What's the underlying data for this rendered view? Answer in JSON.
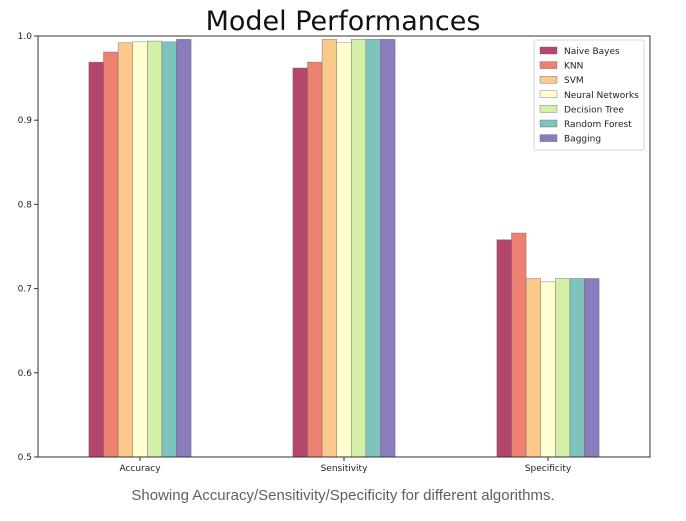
{
  "caption": "Showing Accuracy/Sensitivity/Specificity for different algorithms.",
  "chart_data": {
    "type": "bar",
    "title": "Model Performances",
    "xlabel": "",
    "ylabel": "",
    "categories": [
      "Accuracy",
      "Sensitivity",
      "Specificity"
    ],
    "ylim": [
      0.5,
      1.0
    ],
    "yticks": [
      "0.5",
      "0.6",
      "0.7",
      "0.8",
      "0.9",
      "1.0"
    ],
    "grid": false,
    "legend_position": "top-right",
    "series": [
      {
        "name": "Naive Bayes",
        "color": "#b5466d",
        "values": [
          0.969,
          0.962,
          0.758
        ]
      },
      {
        "name": "KNN",
        "color": "#ec8171",
        "values": [
          0.981,
          0.969,
          0.766
        ]
      },
      {
        "name": "SVM",
        "color": "#fbc88c",
        "values": [
          0.992,
          0.996,
          0.712
        ]
      },
      {
        "name": "Neural Networks",
        "color": "#fefed0",
        "values": [
          0.993,
          0.992,
          0.708
        ]
      },
      {
        "name": "Decision Tree",
        "color": "#d5eeaa",
        "values": [
          0.994,
          0.996,
          0.712
        ]
      },
      {
        "name": "Random Forest",
        "color": "#7cc4bd",
        "values": [
          0.993,
          0.996,
          0.712
        ]
      },
      {
        "name": "Bagging",
        "color": "#8b7cbd",
        "values": [
          0.996,
          0.996,
          0.712
        ]
      }
    ]
  }
}
